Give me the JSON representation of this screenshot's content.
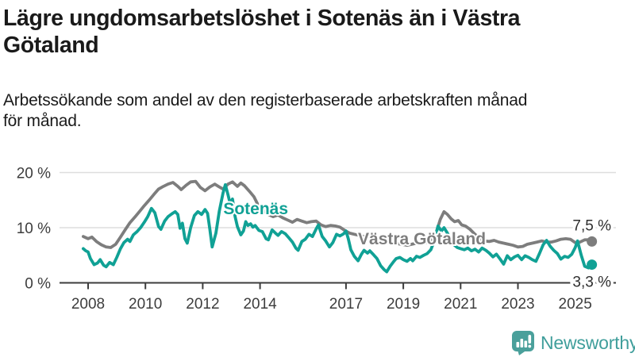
{
  "header": {
    "title_lines": [
      "Lägre ungdomsarbetslöshet i Sotenäs än i Västra",
      "Götaland"
    ],
    "subtitle_lines": [
      "Arbetssökande som andel av den registerbaserade arbetskraften månad",
      "för månad."
    ]
  },
  "footer": {
    "brand": "Newsworthy",
    "logo_icon": "bar-chart-speech-bubble-icon"
  },
  "colors": {
    "sotenas_teal": "#10a195",
    "vastra_gray": "#7d7d7d",
    "gridline": "#dedede",
    "axis": "#3d3d3d",
    "title_text": "#1a1a1a",
    "end_label_text": "#2e2e2e",
    "logo_teal": "#4aa09b",
    "background": "#ffffff"
  },
  "chart_data": {
    "type": "line",
    "title": "Lägre ungdomsarbetslöshet i Sotenäs än i Västra Götaland",
    "subtitle": "Arbetssökande som andel av den registerbaserade arbetskraften månad för månad.",
    "unit": "%",
    "xlabel": "",
    "ylabel": "",
    "x_range": [
      2007.7,
      2025.8
    ],
    "ylim": [
      0,
      21
    ],
    "grid": "horizontal",
    "legend_position": "inline-labels",
    "x_ticks": [
      {
        "year": 2008,
        "label": "2008"
      },
      {
        "year": 2010,
        "label": "2010"
      },
      {
        "year": 2012,
        "label": "2012"
      },
      {
        "year": 2014,
        "label": "2014"
      },
      {
        "year": 2017,
        "label": "2017"
      },
      {
        "year": 2019,
        "label": "2019"
      },
      {
        "year": 2021,
        "label": "2021"
      },
      {
        "year": 2023,
        "label": "2023"
      },
      {
        "year": 2025,
        "label": "2025"
      }
    ],
    "y_ticks": [
      {
        "value": 0,
        "label": "0 %"
      },
      {
        "value": 10,
        "label": "10 %"
      },
      {
        "value": 20,
        "label": "20 %"
      }
    ],
    "series": [
      {
        "name": "Västra Götaland",
        "slug": "vastra-gotaland",
        "color": "#7d7d7d",
        "end_value": 7.5,
        "end_label": "7,5 %",
        "inline_label": {
          "x": 2019.65,
          "y": 7.0
        },
        "end_label_offset": -14,
        "points": [
          [
            2007.83,
            8.4
          ],
          [
            2008.0,
            8.0
          ],
          [
            2008.13,
            8.3
          ],
          [
            2008.29,
            7.5
          ],
          [
            2008.46,
            6.9
          ],
          [
            2008.63,
            6.5
          ],
          [
            2008.79,
            6.4
          ],
          [
            2008.96,
            7.0
          ],
          [
            2009.13,
            8.3
          ],
          [
            2009.29,
            9.6
          ],
          [
            2009.46,
            10.9
          ],
          [
            2009.63,
            11.9
          ],
          [
            2009.79,
            12.9
          ],
          [
            2009.96,
            14.0
          ],
          [
            2010.13,
            15.0
          ],
          [
            2010.29,
            16.0
          ],
          [
            2010.46,
            17.0
          ],
          [
            2010.63,
            17.5
          ],
          [
            2010.79,
            17.9
          ],
          [
            2010.96,
            18.2
          ],
          [
            2011.13,
            17.5
          ],
          [
            2011.25,
            16.9
          ],
          [
            2011.42,
            17.7
          ],
          [
            2011.58,
            18.3
          ],
          [
            2011.75,
            18.4
          ],
          [
            2011.92,
            17.3
          ],
          [
            2012.08,
            16.7
          ],
          [
            2012.25,
            17.4
          ],
          [
            2012.42,
            17.9
          ],
          [
            2012.58,
            17.4
          ],
          [
            2012.71,
            17.0
          ],
          [
            2012.88,
            17.9
          ],
          [
            2013.04,
            18.3
          ],
          [
            2013.21,
            17.5
          ],
          [
            2013.33,
            18.1
          ],
          [
            2013.46,
            17.6
          ],
          [
            2013.63,
            16.6
          ],
          [
            2013.79,
            15.6
          ],
          [
            2013.96,
            13.8
          ],
          [
            2014.13,
            13.0
          ],
          [
            2014.29,
            12.4
          ],
          [
            2014.46,
            12.0
          ],
          [
            2014.63,
            12.3
          ],
          [
            2014.79,
            11.8
          ],
          [
            2014.96,
            11.4
          ],
          [
            2015.13,
            11.0
          ],
          [
            2015.29,
            11.5
          ],
          [
            2015.46,
            11.2
          ],
          [
            2015.63,
            10.9
          ],
          [
            2015.79,
            11.1
          ],
          [
            2015.96,
            11.2
          ],
          [
            2016.13,
            10.5
          ],
          [
            2016.29,
            10.2
          ],
          [
            2016.46,
            10.4
          ],
          [
            2016.63,
            10.3
          ],
          [
            2016.79,
            10.1
          ],
          [
            2016.96,
            9.5
          ],
          [
            2017.13,
            9.0
          ],
          [
            2017.29,
            8.8
          ],
          [
            2017.46,
            8.6
          ],
          [
            2017.63,
            8.4
          ],
          [
            2017.79,
            8.1
          ],
          [
            2017.96,
            7.7
          ],
          [
            2018.13,
            7.4
          ],
          [
            2018.29,
            7.2
          ],
          [
            2018.46,
            7.3
          ],
          [
            2018.63,
            7.3
          ],
          [
            2018.79,
            7.1
          ],
          [
            2018.96,
            7.0
          ],
          [
            2019.13,
            6.8
          ],
          [
            2019.29,
            7.0
          ],
          [
            2019.46,
            7.2
          ],
          [
            2019.63,
            7.4
          ],
          [
            2019.79,
            7.3
          ],
          [
            2019.96,
            7.7
          ],
          [
            2020.13,
            8.8
          ],
          [
            2020.29,
            11.5
          ],
          [
            2020.42,
            12.9
          ],
          [
            2020.54,
            12.4
          ],
          [
            2020.67,
            11.6
          ],
          [
            2020.79,
            11.1
          ],
          [
            2020.92,
            11.3
          ],
          [
            2021.04,
            10.5
          ],
          [
            2021.17,
            10.3
          ],
          [
            2021.33,
            9.7
          ],
          [
            2021.5,
            8.8
          ],
          [
            2021.67,
            8.0
          ],
          [
            2021.83,
            7.6
          ],
          [
            2022.0,
            7.5
          ],
          [
            2022.17,
            7.7
          ],
          [
            2022.33,
            7.4
          ],
          [
            2022.5,
            7.2
          ],
          [
            2022.67,
            7.0
          ],
          [
            2022.83,
            6.8
          ],
          [
            2023.0,
            6.5
          ],
          [
            2023.17,
            6.6
          ],
          [
            2023.33,
            7.0
          ],
          [
            2023.5,
            7.2
          ],
          [
            2023.67,
            7.4
          ],
          [
            2023.83,
            7.6
          ],
          [
            2024.0,
            7.4
          ],
          [
            2024.17,
            7.4
          ],
          [
            2024.33,
            7.6
          ],
          [
            2024.5,
            7.9
          ],
          [
            2024.67,
            8.0
          ],
          [
            2024.83,
            7.9
          ],
          [
            2025.0,
            7.3
          ],
          [
            2025.17,
            7.4
          ],
          [
            2025.33,
            7.8
          ],
          [
            2025.46,
            7.8
          ],
          [
            2025.58,
            7.5
          ]
        ]
      },
      {
        "name": "Sotenäs",
        "slug": "sotenas",
        "color": "#10a195",
        "end_value": 3.3,
        "end_label": "3,3 %",
        "inline_label": {
          "x": 2013.85,
          "y": 12.45
        },
        "end_label_offset": 28,
        "points": [
          [
            2007.83,
            6.2
          ],
          [
            2007.92,
            5.8
          ],
          [
            2008.0,
            5.6
          ],
          [
            2008.08,
            4.4
          ],
          [
            2008.21,
            3.3
          ],
          [
            2008.33,
            3.6
          ],
          [
            2008.42,
            4.2
          ],
          [
            2008.54,
            3.2
          ],
          [
            2008.63,
            2.9
          ],
          [
            2008.75,
            3.7
          ],
          [
            2008.88,
            3.3
          ],
          [
            2009.0,
            4.6
          ],
          [
            2009.13,
            6.2
          ],
          [
            2009.25,
            7.3
          ],
          [
            2009.38,
            7.9
          ],
          [
            2009.46,
            7.5
          ],
          [
            2009.58,
            8.7
          ],
          [
            2009.71,
            9.3
          ],
          [
            2009.83,
            10.0
          ],
          [
            2009.96,
            11.0
          ],
          [
            2010.08,
            12.0
          ],
          [
            2010.21,
            13.5
          ],
          [
            2010.33,
            12.7
          ],
          [
            2010.46,
            10.2
          ],
          [
            2010.54,
            9.7
          ],
          [
            2010.67,
            11.2
          ],
          [
            2010.79,
            12.0
          ],
          [
            2010.92,
            12.5
          ],
          [
            2011.04,
            12.9
          ],
          [
            2011.13,
            12.4
          ],
          [
            2011.21,
            9.9
          ],
          [
            2011.29,
            10.8
          ],
          [
            2011.38,
            8.0
          ],
          [
            2011.46,
            7.2
          ],
          [
            2011.58,
            10.0
          ],
          [
            2011.71,
            12.2
          ],
          [
            2011.83,
            12.9
          ],
          [
            2011.96,
            12.4
          ],
          [
            2012.08,
            13.3
          ],
          [
            2012.17,
            12.6
          ],
          [
            2012.25,
            9.7
          ],
          [
            2012.33,
            6.5
          ],
          [
            2012.46,
            9.0
          ],
          [
            2012.58,
            13.0
          ],
          [
            2012.71,
            16.3
          ],
          [
            2012.79,
            17.8
          ],
          [
            2012.88,
            16.0
          ],
          [
            2012.96,
            14.3
          ],
          [
            2013.04,
            15.2
          ],
          [
            2013.13,
            12.0
          ],
          [
            2013.21,
            10.2
          ],
          [
            2013.33,
            8.7
          ],
          [
            2013.42,
            9.4
          ],
          [
            2013.5,
            11.1
          ],
          [
            2013.58,
            10.4
          ],
          [
            2013.67,
            10.7
          ],
          [
            2013.75,
            10.1
          ],
          [
            2013.83,
            10.4
          ],
          [
            2013.96,
            9.5
          ],
          [
            2014.08,
            9.3
          ],
          [
            2014.21,
            8.0
          ],
          [
            2014.29,
            7.8
          ],
          [
            2014.42,
            9.6
          ],
          [
            2014.54,
            9.0
          ],
          [
            2014.63,
            8.6
          ],
          [
            2014.75,
            9.3
          ],
          [
            2014.88,
            8.9
          ],
          [
            2015.0,
            8.2
          ],
          [
            2015.13,
            7.4
          ],
          [
            2015.25,
            6.3
          ],
          [
            2015.33,
            5.9
          ],
          [
            2015.46,
            7.5
          ],
          [
            2015.58,
            7.9
          ],
          [
            2015.71,
            8.8
          ],
          [
            2015.83,
            8.4
          ],
          [
            2015.96,
            9.8
          ],
          [
            2016.04,
            10.5
          ],
          [
            2016.17,
            8.4
          ],
          [
            2016.29,
            7.6
          ],
          [
            2016.42,
            6.5
          ],
          [
            2016.54,
            7.3
          ],
          [
            2016.67,
            8.8
          ],
          [
            2016.79,
            8.5
          ],
          [
            2016.92,
            8.9
          ],
          [
            2017.0,
            9.4
          ],
          [
            2017.08,
            8.0
          ],
          [
            2017.17,
            6.0
          ],
          [
            2017.29,
            4.8
          ],
          [
            2017.42,
            4.0
          ],
          [
            2017.54,
            5.2
          ],
          [
            2017.63,
            5.9
          ],
          [
            2017.75,
            5.4
          ],
          [
            2017.83,
            5.8
          ],
          [
            2017.96,
            5.1
          ],
          [
            2018.08,
            4.4
          ],
          [
            2018.21,
            3.1
          ],
          [
            2018.33,
            2.4
          ],
          [
            2018.42,
            2.0
          ],
          [
            2018.54,
            3.0
          ],
          [
            2018.67,
            3.9
          ],
          [
            2018.75,
            4.4
          ],
          [
            2018.88,
            4.6
          ],
          [
            2019.0,
            4.2
          ],
          [
            2019.13,
            3.9
          ],
          [
            2019.25,
            4.4
          ],
          [
            2019.33,
            4.0
          ],
          [
            2019.46,
            4.8
          ],
          [
            2019.58,
            4.6
          ],
          [
            2019.71,
            5.0
          ],
          [
            2019.83,
            5.3
          ],
          [
            2019.96,
            6.0
          ],
          [
            2020.08,
            7.6
          ],
          [
            2020.21,
            10.3
          ],
          [
            2020.33,
            9.4
          ],
          [
            2020.42,
            10.0
          ],
          [
            2020.54,
            9.0
          ],
          [
            2020.63,
            8.0
          ],
          [
            2020.75,
            7.0
          ],
          [
            2020.88,
            6.4
          ],
          [
            2021.0,
            6.2
          ],
          [
            2021.13,
            6.0
          ],
          [
            2021.25,
            6.3
          ],
          [
            2021.38,
            5.8
          ],
          [
            2021.5,
            6.1
          ],
          [
            2021.63,
            5.6
          ],
          [
            2021.75,
            6.3
          ],
          [
            2021.88,
            5.9
          ],
          [
            2022.0,
            5.4
          ],
          [
            2022.13,
            4.7
          ],
          [
            2022.25,
            5.2
          ],
          [
            2022.38,
            4.3
          ],
          [
            2022.5,
            3.4
          ],
          [
            2022.63,
            4.9
          ],
          [
            2022.75,
            4.2
          ],
          [
            2022.88,
            4.7
          ],
          [
            2023.0,
            5.0
          ],
          [
            2023.13,
            4.2
          ],
          [
            2023.25,
            4.9
          ],
          [
            2023.38,
            4.6
          ],
          [
            2023.5,
            4.2
          ],
          [
            2023.63,
            3.9
          ],
          [
            2023.75,
            5.3
          ],
          [
            2023.88,
            6.9
          ],
          [
            2024.0,
            7.7
          ],
          [
            2024.13,
            6.6
          ],
          [
            2024.25,
            5.9
          ],
          [
            2024.38,
            5.3
          ],
          [
            2024.5,
            4.3
          ],
          [
            2024.63,
            4.8
          ],
          [
            2024.75,
            4.6
          ],
          [
            2024.88,
            5.2
          ],
          [
            2025.0,
            6.4
          ],
          [
            2025.08,
            7.6
          ],
          [
            2025.21,
            5.0
          ],
          [
            2025.33,
            3.0
          ],
          [
            2025.46,
            2.7
          ],
          [
            2025.58,
            3.3
          ]
        ]
      }
    ]
  }
}
